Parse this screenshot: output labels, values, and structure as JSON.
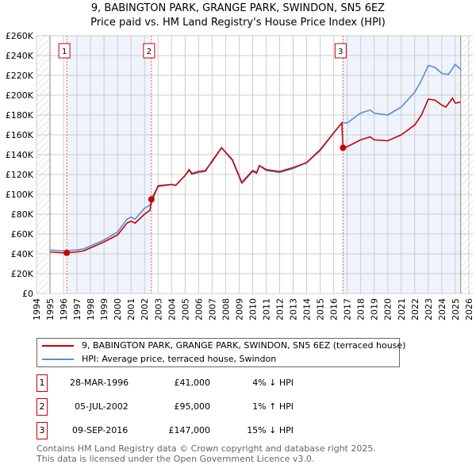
{
  "chart_data": {
    "type": "line",
    "title": "9, BABINGTON PARK, GRANGE PARK, SWINDON, SN5 6EZ",
    "subtitle": "Price paid vs. HM Land Registry's House Price Index (HPI)",
    "xlim": [
      1994,
      2026.3
    ],
    "ylim": [
      0,
      260000
    ],
    "x_ticks": [
      1994,
      1995,
      1996,
      1997,
      1998,
      1999,
      2000,
      2001,
      2002,
      2003,
      2004,
      2005,
      2006,
      2007,
      2008,
      2009,
      2010,
      2011,
      2012,
      2013,
      2014,
      2015,
      2016,
      2017,
      2018,
      2019,
      2020,
      2021,
      2022,
      2023,
      2024,
      2025,
      2026
    ],
    "y_ticks": [
      {
        "v": 0,
        "l": "£0"
      },
      {
        "v": 20000,
        "l": "£20K"
      },
      {
        "v": 40000,
        "l": "£40K"
      },
      {
        "v": 60000,
        "l": "£60K"
      },
      {
        "v": 80000,
        "l": "£80K"
      },
      {
        "v": 100000,
        "l": "£100K"
      },
      {
        "v": 120000,
        "l": "£120K"
      },
      {
        "v": 140000,
        "l": "£140K"
      },
      {
        "v": 160000,
        "l": "£160K"
      },
      {
        "v": 180000,
        "l": "£180K"
      },
      {
        "v": 200000,
        "l": "£200K"
      },
      {
        "v": 220000,
        "l": "£220K"
      },
      {
        "v": 240000,
        "l": "£240K"
      },
      {
        "v": 260000,
        "l": "£260K"
      }
    ],
    "grid": true,
    "series": [
      {
        "name": "9, BABINGTON PARK, GRANGE PARK, SWINDON, SN5 6EZ (terraced house)",
        "color": "#cc0000",
        "x": [
          1995,
          1995.5,
          1996,
          1996.24,
          1997,
          1997.5,
          1998,
          1999,
          2000,
          2000.7,
          2001,
          2001.3,
          2002,
          2002.4,
          2002.51,
          2003,
          2004,
          2004.3,
          2005,
          2005.3,
          2005.5,
          2006,
          2006.5,
          2007,
          2007.7,
          2008.5,
          2009.2,
          2010,
          2010.3,
          2010.5,
          2011,
          2012,
          2013,
          2014,
          2015,
          2016,
          2016.6,
          2016.69,
          2017,
          2018,
          2018.7,
          2019,
          2020,
          2021,
          2022,
          2022.5,
          2023,
          2023.5,
          2024,
          2024.3,
          2024.8,
          2025,
          2025.4
        ],
        "y": [
          42000,
          41500,
          41000,
          41000,
          42000,
          43000,
          46000,
          52000,
          59000,
          71000,
          73000,
          71000,
          80000,
          84000,
          95000,
          108000,
          110000,
          109000,
          119000,
          125000,
          121000,
          123000,
          124000,
          133000,
          147000,
          135000,
          112000,
          124000,
          122000,
          129000,
          125000,
          123000,
          127000,
          132000,
          145000,
          162000,
          172000,
          147000,
          148000,
          155000,
          158000,
          155000,
          154000,
          160000,
          170000,
          180000,
          196000,
          195000,
          190000,
          188000,
          197000,
          192000,
          193000
        ]
      },
      {
        "name": "HPI: Average price, terraced house, Swindon",
        "color": "#5b8dd4",
        "x": [
          1995,
          1995.5,
          1996,
          1997,
          1997.5,
          1998,
          1999,
          2000,
          2000.7,
          2001,
          2001.3,
          2002,
          2002.5,
          2003,
          2004,
          2004.3,
          2005,
          2005.3,
          2005.5,
          2006,
          2006.5,
          2007,
          2007.7,
          2008.5,
          2009.2,
          2010,
          2010.3,
          2010.5,
          2011,
          2012,
          2013,
          2014,
          2015,
          2016,
          2016.6,
          2017,
          2018,
          2018.7,
          2019,
          2020,
          2021,
          2022,
          2022.5,
          2023,
          2023.5,
          2024,
          2024.5,
          2025,
          2025.4
        ],
        "y": [
          44000,
          43500,
          43000,
          44000,
          45000,
          48000,
          54000,
          62000,
          75000,
          77000,
          75000,
          86000,
          90000,
          109000,
          110000,
          109000,
          119000,
          124000,
          120000,
          122000,
          123000,
          134000,
          147000,
          134000,
          111000,
          123000,
          121000,
          129000,
          124000,
          122000,
          126000,
          132000,
          144000,
          162000,
          172000,
          172000,
          182000,
          185000,
          182000,
          180000,
          188000,
          203000,
          215000,
          230000,
          228000,
          222000,
          221000,
          231000,
          226000
        ]
      }
    ],
    "sales": [
      {
        "id": "1",
        "x": 1996.24,
        "y": 41000
      },
      {
        "id": "2",
        "x": 2002.51,
        "y": 95000
      },
      {
        "id": "3",
        "x": 2016.69,
        "y": 147000
      }
    ],
    "data_end": 2025.4
  },
  "legend": {
    "property": "9, BABINGTON PARK, GRANGE PARK, SWINDON, SN5 6EZ (terraced house)",
    "hpi": "HPI: Average price, terraced house, Swindon"
  },
  "transactions": [
    {
      "id": "1",
      "date": "28-MAR-1996",
      "price": "£41,000",
      "hpi": "4% ↓ HPI"
    },
    {
      "id": "2",
      "date": "05-JUL-2002",
      "price": "£95,000",
      "hpi": "1% ↑ HPI"
    },
    {
      "id": "3",
      "date": "09-SEP-2016",
      "price": "£147,000",
      "hpi": "15% ↓ HPI"
    }
  ],
  "footer": {
    "line1": "Contains HM Land Registry data © Crown copyright and database right 2025.",
    "line2": "This data is licensed under the Open Government Licence v3.0."
  }
}
